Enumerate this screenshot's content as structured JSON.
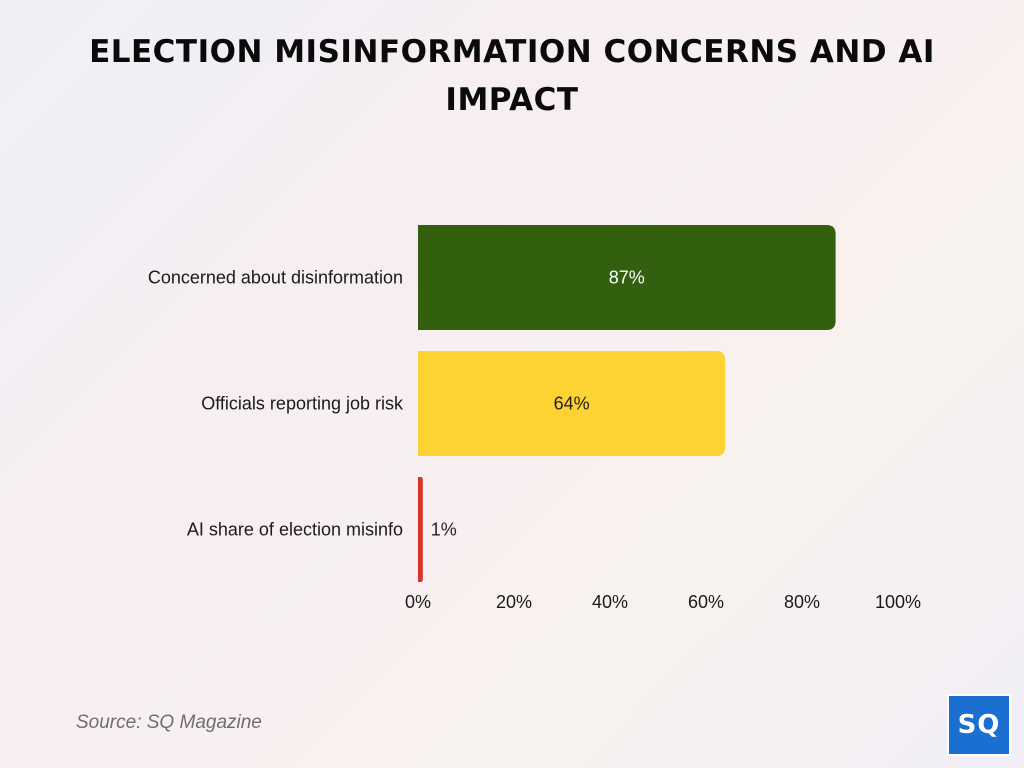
{
  "page": {
    "title": "ELECTION MISINFORMATION CONCERNS AND AI IMPACT",
    "source": "Source: SQ Magazine",
    "logo_text": "SQ"
  },
  "chart_data": {
    "type": "bar",
    "orientation": "horizontal",
    "categories": [
      "Concerned about disinformation",
      "Officials reporting job risk",
      "AI share of election misinfo"
    ],
    "values": [
      87,
      64,
      1
    ],
    "value_labels": [
      "87%",
      "64%",
      "1%"
    ],
    "colors": [
      "#33600e",
      "#fdd233",
      "#d9342b"
    ],
    "label_colors": [
      "#ffffff",
      "#222222",
      "#222222"
    ],
    "xlim": [
      0,
      100
    ],
    "xticks": [
      0,
      20,
      40,
      60,
      80,
      100
    ],
    "xtick_labels": [
      "0%",
      "20%",
      "40%",
      "60%",
      "80%",
      "100%"
    ],
    "grid": false,
    "legend": "none"
  }
}
